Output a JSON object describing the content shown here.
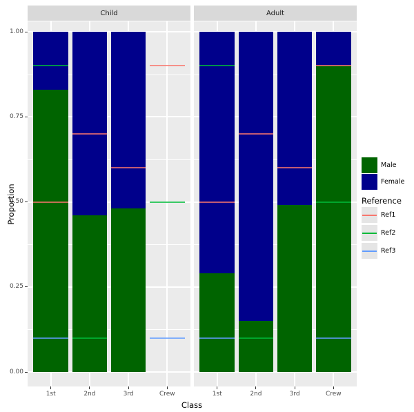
{
  "chart_data": {
    "type": "bar",
    "subtype": "stacked-proportion-faceted",
    "title": "",
    "xlabel": "Class",
    "ylabel": "Proportion",
    "categories": [
      "1st",
      "2nd",
      "3rd",
      "Crew"
    ],
    "facets": [
      {
        "label": "Child",
        "series": [
          {
            "name": "Male",
            "values": [
              0.83,
              0.46,
              0.48,
              null
            ]
          },
          {
            "name": "Female",
            "values": [
              0.17,
              0.54,
              0.52,
              null
            ]
          }
        ]
      },
      {
        "label": "Adult",
        "series": [
          {
            "name": "Male",
            "values": [
              0.29,
              0.15,
              0.49,
              0.9
            ]
          },
          {
            "name": "Female",
            "values": [
              0.71,
              0.85,
              0.51,
              0.1
            ]
          }
        ]
      }
    ],
    "ylim": [
      0,
      1
    ],
    "y_ticks": [
      {
        "label": "0.00",
        "value": 0
      },
      {
        "label": "0.25",
        "value": 0.25
      },
      {
        "label": "0.50",
        "value": 0.5
      },
      {
        "label": "0.75",
        "value": 0.75
      },
      {
        "label": "1.00",
        "value": 1
      }
    ],
    "y_minor_gridlines": [
      0.125,
      0.375,
      0.625,
      0.875
    ],
    "grid": "on",
    "reference_lines": [
      {
        "label": "Ref1",
        "color": "#F8766D",
        "values_by_class": {
          "1st": 0.5,
          "2nd": 0.7,
          "3rd": 0.6,
          "Crew": 0.9
        }
      },
      {
        "label": "Ref2",
        "color": "#00BA38",
        "values_by_class": {
          "1st": 0.9,
          "2nd": 0.1,
          "Crew": 0.5
        }
      },
      {
        "label": "Ref3",
        "color": "#619CFF",
        "values_by_class": {
          "1st": 0.1,
          "Crew": 0.1
        }
      }
    ],
    "legend": {
      "position": "right",
      "fill_entries": [
        {
          "label": "Male",
          "color": "#006400"
        },
        {
          "label": "Female",
          "color": "#00008B"
        }
      ],
      "reference_title": "Reference"
    },
    "style": {
      "panel_bg": "#EBEBEB",
      "strip_bg": "#D9D9D9",
      "grid_color": "#FFFFFF",
      "axis_text_color": "#4D4D4D",
      "male_color": "#006400",
      "female_color": "#00008B"
    }
  }
}
